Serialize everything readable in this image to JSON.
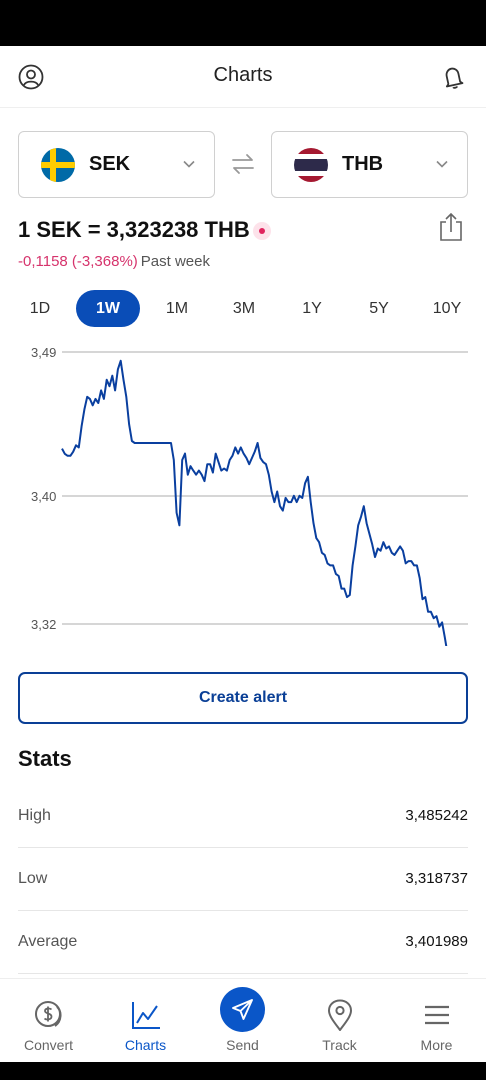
{
  "header": {
    "title": "Charts"
  },
  "converter": {
    "from": {
      "code": "SEK",
      "flag": "sweden-flag-icon"
    },
    "to": {
      "code": "THB",
      "flag": "thailand-flag-icon"
    }
  },
  "rate": {
    "text": "1 SEK = 3,323238 THB",
    "change": "-0,1158 (-3,368%)",
    "period_label": "Past week",
    "change_color": "#d6336c"
  },
  "tabs": [
    {
      "label": "1D",
      "active": false
    },
    {
      "label": "1W",
      "active": true
    },
    {
      "label": "1M",
      "active": false
    },
    {
      "label": "3M",
      "active": false
    },
    {
      "label": "1Y",
      "active": false
    },
    {
      "label": "5Y",
      "active": false
    },
    {
      "label": "10Y",
      "active": false
    }
  ],
  "chart_data": {
    "type": "line",
    "title": "",
    "xlabel": "",
    "ylabel": "",
    "ylim": [
      3.32,
      3.49
    ],
    "yticks": [
      "3,49",
      "3,40",
      "3,32"
    ],
    "ytick_values": [
      3.49,
      3.4,
      3.32
    ],
    "grid": true,
    "color": "#0a3f9f",
    "series": [
      {
        "values": [
          3.4296,
          3.4264,
          3.4251,
          3.4251,
          3.4277,
          3.4317,
          3.4304,
          3.4436,
          3.4541,
          3.462,
          3.4607,
          3.4567,
          3.4607,
          3.4581,
          3.466,
          3.4607,
          3.4726,
          3.4686,
          3.4752,
          3.466,
          3.4792,
          3.4845,
          3.4726,
          3.462,
          3.4449,
          3.4344,
          3.4331,
          3.4331,
          3.4331,
          3.4331,
          3.4331,
          3.4331,
          3.4331,
          3.4331,
          3.4331,
          3.4331,
          3.4331,
          3.4331,
          3.4331,
          3.4331,
          3.4225,
          3.3895,
          3.3817,
          3.4225,
          3.4265,
          3.4133,
          3.4186,
          3.4159,
          3.4133,
          3.4159,
          3.4133,
          3.4093,
          3.4199,
          3.4199,
          3.4146,
          3.4265,
          3.4212,
          3.4159,
          3.4172,
          3.4159,
          3.4225,
          3.4252,
          3.4304,
          3.4265,
          3.4304,
          3.4265,
          3.4238,
          3.4199,
          3.4238,
          3.4278,
          3.4331,
          3.4238,
          3.4212,
          3.4199,
          3.4133,
          3.4028,
          3.3962,
          3.4028,
          3.3936,
          3.3909,
          3.3988,
          3.3962,
          3.3962,
          3.4001,
          3.3962,
          3.4001,
          3.3988,
          3.408,
          3.412,
          3.3962,
          3.383,
          3.3737,
          3.3711,
          3.3645,
          3.3632,
          3.3579,
          3.3566,
          3.3566,
          3.3513,
          3.35,
          3.3421,
          3.3421,
          3.3368,
          3.3381,
          3.3566,
          3.3685,
          3.3817,
          3.387,
          3.3936,
          3.383,
          3.3764,
          3.3698,
          3.3619,
          3.3672,
          3.3658,
          3.3711,
          3.3672,
          3.3685,
          3.3645,
          3.3632,
          3.3658,
          3.3685,
          3.3658,
          3.3579,
          3.3593,
          3.3593,
          3.3566,
          3.3566,
          3.3487,
          3.3355,
          3.3368,
          3.3276,
          3.3276,
          3.3236,
          3.3249,
          3.3183,
          3.321,
          3.3117,
          3.3012,
          3.2959,
          3.2959,
          3.2919,
          3.28,
          3.2893,
          3.2972,
          3.2932,
          3.2932
        ]
      }
    ],
    "last_point_marker": true
  },
  "actions": {
    "create_alert": "Create alert"
  },
  "stats": {
    "title": "Stats",
    "rows": [
      {
        "label": "High",
        "value": "3,485242"
      },
      {
        "label": "Low",
        "value": "3,318737"
      },
      {
        "label": "Average",
        "value": "3,401989"
      }
    ]
  },
  "nav": [
    {
      "label": "Convert",
      "icon": "dollar-coin-icon",
      "active": false
    },
    {
      "label": "Charts",
      "icon": "line-chart-icon",
      "active": true
    },
    {
      "label": "Send",
      "icon": "paper-plane-icon",
      "active": false
    },
    {
      "label": "Track",
      "icon": "location-pin-icon",
      "active": false
    },
    {
      "label": "More",
      "icon": "menu-icon",
      "active": false
    }
  ],
  "colors": {
    "accent": "#0a56c8",
    "alert_border": "#0a3f96",
    "live_dot": "#e0245e"
  }
}
